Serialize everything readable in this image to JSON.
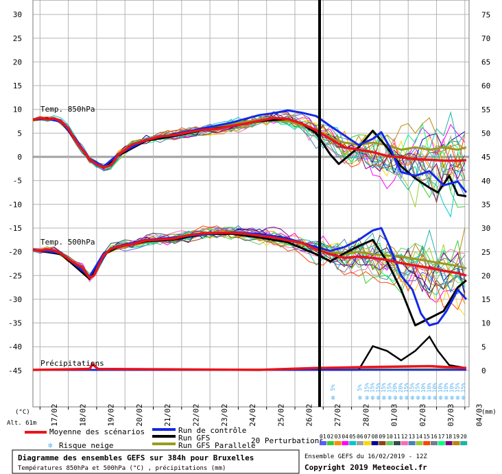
{
  "chart_data": {
    "type": "line",
    "title": "Diagramme des ensembles GEFS sur 384h pour Bruxelles",
    "subtitle": "Températures 850hPa et 500hPa (°C) , précipitations (mm)",
    "run_info": "Ensemble GEFS du 16/02/2019 - 12Z",
    "copyright": "Copyright 2019 Meteociel.fr",
    "y_left_label": "(°C)",
    "y_right_label": "(mm)",
    "altitude": "Alt. 61m",
    "y_left_ticks": [
      30,
      25,
      20,
      15,
      10,
      5,
      0,
      -5,
      -10,
      -15,
      -20,
      -25,
      -30,
      -35,
      -40,
      -45
    ],
    "y_left_tick_labels": [
      "30",
      "25",
      "20",
      "15",
      "10",
      "5",
      "0",
      "-5",
      "-10",
      "-15",
      "-20",
      "-25",
      "-30",
      "-35",
      "-40",
      "-45"
    ],
    "y_right_ticks": [
      75,
      70,
      65,
      60,
      55,
      50,
      45,
      40,
      35,
      30,
      25,
      20,
      15,
      10,
      5,
      0
    ],
    "y_right_tick_labels": [
      "75",
      "70",
      "65",
      "60",
      "55",
      "50",
      "45",
      "40",
      "35",
      "30",
      "25",
      "20",
      "15",
      "10",
      "5",
      "0"
    ],
    "ylim": [
      -50,
      32
    ],
    "x_dates": [
      "17/02",
      "18/02",
      "19/02",
      "20/02",
      "21/02",
      "22/02",
      "23/02",
      "24/02",
      "25/02",
      "26/02",
      "27/02",
      "28/02",
      "01/03",
      "02/03",
      "03/03",
      "04/03"
    ],
    "grid": true,
    "panel_labels": {
      "t850": "Temp. 850hPa",
      "t500": "Temp. 500hPa",
      "precip": "Précipitations"
    },
    "legend": {
      "mean": "Moyenne des scénarios",
      "control": "Run de contrôle",
      "gfs": "Run GFS",
      "parallel": "Run GFS Parallele",
      "perturbations": "20 Perturbations",
      "snow": "Risque neige",
      "member_numbers": [
        "01",
        "02",
        "03",
        "04",
        "05",
        "06",
        "07",
        "08",
        "09",
        "10",
        "11",
        "12",
        "13",
        "14",
        "15",
        "16",
        "17",
        "18",
        "19",
        "20"
      ]
    },
    "colors": {
      "mean": "#e8141e",
      "control": "#1428e6",
      "gfs": "#000000",
      "parallel": "#9a9a1e",
      "grid": "#b4b4b4",
      "zero_line": "#a0a0a0",
      "divider": "#000000",
      "snow": "#5ab4f0"
    },
    "member_colors": [
      "#5a5aff",
      "#32cd32",
      "#ff8c00",
      "#ff00ff",
      "#00c8c8",
      "#a0a0a0",
      "#ffd700",
      "#0000a0",
      "#8b4513",
      "#66cc66",
      "#2f4f4f",
      "#ff69b4",
      "#4682b4",
      "#9acd32",
      "#ff4500",
      "#708090",
      "#00ff7f",
      "#800080",
      "#b8860b",
      "#20b2aa"
    ],
    "series": [
      {
        "name": "Moyenne des scénarios",
        "t850": [
          [
            0,
            7.8
          ],
          [
            0.25,
            8.2
          ],
          [
            0.5,
            7.9
          ],
          [
            0.75,
            8.1
          ],
          [
            1,
            7.5
          ],
          [
            1.25,
            6.0
          ],
          [
            1.5,
            3.5
          ],
          [
            1.75,
            1.5
          ],
          [
            2,
            -0.5
          ],
          [
            2.25,
            -1.6
          ],
          [
            2.5,
            -2.2
          ],
          [
            2.75,
            -1.8
          ],
          [
            3,
            0.3
          ],
          [
            3.5,
            2.6
          ],
          [
            4,
            3.5
          ],
          [
            4.5,
            4.3
          ],
          [
            5,
            4.6
          ],
          [
            5.5,
            5.2
          ],
          [
            6,
            5.7
          ],
          [
            6.5,
            5.9
          ],
          [
            7,
            6.5
          ],
          [
            7.5,
            7.0
          ],
          [
            8,
            7.6
          ],
          [
            8.5,
            8.2
          ],
          [
            9,
            8.0
          ],
          [
            9.5,
            7.0
          ],
          [
            10,
            5.6
          ],
          [
            10.5,
            3.8
          ],
          [
            11,
            2.0
          ],
          [
            11.5,
            1.5
          ],
          [
            12,
            1.0
          ],
          [
            12.5,
            0.2
          ],
          [
            13,
            -0.1
          ],
          [
            13.5,
            -0.5
          ],
          [
            14,
            -0.6
          ],
          [
            14.5,
            -0.8
          ],
          [
            15,
            -0.8
          ],
          [
            15.3,
            -0.7
          ]
        ],
        "t500": [
          [
            0,
            -19.6
          ],
          [
            0.25,
            -19.8
          ],
          [
            0.5,
            -19.5
          ],
          [
            0.75,
            -19.7
          ],
          [
            1,
            -20.4
          ],
          [
            1.25,
            -21.5
          ],
          [
            1.5,
            -22.5
          ],
          [
            1.75,
            -23.3
          ],
          [
            2,
            -25.5
          ],
          [
            2.15,
            -25.0
          ],
          [
            2.5,
            -20.7
          ],
          [
            2.75,
            -19.4
          ],
          [
            3,
            -18.9
          ],
          [
            3.5,
            -18.4
          ],
          [
            4,
            -17.6
          ],
          [
            4.5,
            -17.4
          ],
          [
            5,
            -17.2
          ],
          [
            5.5,
            -16.5
          ],
          [
            6,
            -16.1
          ],
          [
            6.5,
            -16.0
          ],
          [
            7,
            -16.0
          ],
          [
            7.5,
            -16.2
          ],
          [
            8,
            -16.6
          ],
          [
            8.5,
            -17.0
          ],
          [
            9,
            -17.6
          ],
          [
            9.5,
            -18.1
          ],
          [
            10,
            -19.5
          ],
          [
            10.5,
            -20.5
          ],
          [
            11,
            -21.3
          ],
          [
            11.5,
            -21.0
          ],
          [
            12,
            -21.3
          ],
          [
            12.5,
            -21.7
          ],
          [
            13,
            -22.4
          ],
          [
            13.5,
            -22.9
          ],
          [
            14,
            -23.4
          ],
          [
            14.5,
            -24.0
          ],
          [
            15,
            -24.5
          ],
          [
            15.3,
            -25.0
          ]
        ],
        "precip": [
          [
            0,
            0
          ],
          [
            2,
            0.1
          ],
          [
            2.1,
            0.6
          ],
          [
            2.3,
            0.1
          ],
          [
            8,
            0
          ],
          [
            10,
            0.2
          ],
          [
            12,
            0.3
          ],
          [
            14,
            0.4
          ],
          [
            15.3,
            0.2
          ]
        ]
      },
      {
        "name": "Run de contrôle",
        "t850": [
          [
            0,
            7.9
          ],
          [
            0.5,
            8.0
          ],
          [
            1,
            7.4
          ],
          [
            1.5,
            3.8
          ],
          [
            2,
            -0.4
          ],
          [
            2.5,
            -2.0
          ],
          [
            3,
            0.5
          ],
          [
            4,
            3.6
          ],
          [
            5,
            4.8
          ],
          [
            6,
            6.0
          ],
          [
            7,
            7.2
          ],
          [
            8,
            8.8
          ],
          [
            8.5,
            9.2
          ],
          [
            9,
            9.8
          ],
          [
            9.5,
            9.3
          ],
          [
            10,
            8.6
          ],
          [
            10.5,
            6.5
          ],
          [
            11,
            4.5
          ],
          [
            11.5,
            2.5
          ],
          [
            12,
            3.8
          ],
          [
            12.3,
            5.2
          ],
          [
            12.6,
            2.0
          ],
          [
            13,
            -3.2
          ],
          [
            13.5,
            -4.0
          ],
          [
            14,
            -3.0
          ],
          [
            14.5,
            -6.0
          ],
          [
            15,
            -5.2
          ],
          [
            15.3,
            -7.5
          ]
        ],
        "t500": [
          [
            0,
            -19.5
          ],
          [
            1,
            -20.3
          ],
          [
            2,
            -25.2
          ],
          [
            2.5,
            -20.3
          ],
          [
            3,
            -18.8
          ],
          [
            4,
            -17.5
          ],
          [
            5,
            -17.0
          ],
          [
            6,
            -16.3
          ],
          [
            7,
            -15.9
          ],
          [
            8,
            -16.2
          ],
          [
            9,
            -17.2
          ],
          [
            10,
            -19.0
          ],
          [
            10.5,
            -19.8
          ],
          [
            11,
            -19.0
          ],
          [
            11.5,
            -17.5
          ],
          [
            12,
            -15.5
          ],
          [
            12.3,
            -15.0
          ],
          [
            12.6,
            -19.0
          ],
          [
            13,
            -25.0
          ],
          [
            13.4,
            -28.0
          ],
          [
            13.7,
            -33.0
          ],
          [
            14,
            -35.5
          ],
          [
            14.3,
            -35.0
          ],
          [
            14.6,
            -32.5
          ],
          [
            15,
            -28.0
          ],
          [
            15.3,
            -30.0
          ]
        ],
        "precip": [
          [
            0,
            0
          ],
          [
            15.3,
            0
          ]
        ]
      },
      {
        "name": "Run GFS",
        "t850": [
          [
            0,
            7.8
          ],
          [
            0.5,
            8.1
          ],
          [
            1,
            7.4
          ],
          [
            1.5,
            3.6
          ],
          [
            2,
            -0.6
          ],
          [
            2.5,
            -2.3
          ],
          [
            3,
            0.2
          ],
          [
            4,
            3.4
          ],
          [
            5,
            4.4
          ],
          [
            6,
            5.6
          ],
          [
            7,
            6.5
          ],
          [
            8,
            7.5
          ],
          [
            9,
            8.0
          ],
          [
            9.5,
            7.0
          ],
          [
            10,
            5.0
          ],
          [
            10.5,
            0.5
          ],
          [
            10.8,
            -1.5
          ],
          [
            11,
            -0.5
          ],
          [
            11.5,
            2.0
          ],
          [
            12,
            5.5
          ],
          [
            12.5,
            2.0
          ],
          [
            13,
            -2.0
          ],
          [
            13.5,
            -4.5
          ],
          [
            14,
            -6.5
          ],
          [
            14.3,
            -7.5
          ],
          [
            14.7,
            -4.0
          ],
          [
            15,
            -8.0
          ],
          [
            15.3,
            -8.3
          ]
        ],
        "t500": [
          [
            0,
            -19.6
          ],
          [
            1,
            -20.5
          ],
          [
            2,
            -25.7
          ],
          [
            2.5,
            -20.5
          ],
          [
            3,
            -19.0
          ],
          [
            4,
            -17.8
          ],
          [
            5,
            -17.4
          ],
          [
            6,
            -16.3
          ],
          [
            7,
            -16.2
          ],
          [
            8,
            -17.0
          ],
          [
            9,
            -18.0
          ],
          [
            10,
            -20.5
          ],
          [
            10.5,
            -22.0
          ],
          [
            11,
            -20.3
          ],
          [
            11.5,
            -18.8
          ],
          [
            12,
            -17.5
          ],
          [
            12.5,
            -22.0
          ],
          [
            13,
            -28.0
          ],
          [
            13.5,
            -35.5
          ],
          [
            14,
            -34.0
          ],
          [
            14.5,
            -32.5
          ],
          [
            15,
            -27.5
          ],
          [
            15.3,
            -26.0
          ]
        ],
        "precip": [
          [
            0,
            0
          ],
          [
            11.5,
            0
          ],
          [
            12,
            2.5
          ],
          [
            12.5,
            2.0
          ],
          [
            13,
            1.0
          ],
          [
            13.5,
            2.0
          ],
          [
            14,
            3.5
          ],
          [
            14.3,
            2.0
          ],
          [
            14.7,
            0.5
          ],
          [
            15.3,
            0.2
          ]
        ]
      },
      {
        "name": "Run GFS Parallele",
        "t850": [
          [
            0,
            7.7
          ],
          [
            0.5,
            8.0
          ],
          [
            1,
            7.5
          ],
          [
            1.5,
            3.7
          ],
          [
            2,
            -0.3
          ],
          [
            2.5,
            -2.1
          ],
          [
            3,
            0.4
          ],
          [
            4,
            3.7
          ],
          [
            5,
            4.5
          ],
          [
            6,
            5.8
          ],
          [
            7,
            7.0
          ],
          [
            8,
            7.8
          ],
          [
            9,
            7.5
          ],
          [
            10,
            5.8
          ],
          [
            10.5,
            4.0
          ],
          [
            11,
            3.0
          ],
          [
            11.5,
            2.5
          ],
          [
            12,
            3.0
          ],
          [
            12.5,
            2.5
          ],
          [
            13,
            1.5
          ],
          [
            13.5,
            2.0
          ],
          [
            14,
            1.5
          ],
          [
            14.5,
            2.0
          ],
          [
            15,
            1.5
          ],
          [
            15.3,
            2.0
          ]
        ],
        "t500": [
          [
            0,
            -19.7
          ],
          [
            1,
            -20.4
          ],
          [
            2,
            -25.3
          ],
          [
            2.5,
            -20.5
          ],
          [
            3,
            -19.2
          ],
          [
            4,
            -17.6
          ],
          [
            5,
            -17.5
          ],
          [
            6,
            -16.0
          ],
          [
            7,
            -15.8
          ],
          [
            8,
            -16.3
          ],
          [
            9,
            -17.4
          ],
          [
            10,
            -19.2
          ],
          [
            10.5,
            -20.0
          ],
          [
            11,
            -20.5
          ],
          [
            11.5,
            -20.0
          ],
          [
            12,
            -20.5
          ],
          [
            12.5,
            -20.8
          ],
          [
            13,
            -21.0
          ],
          [
            13.5,
            -21.5
          ],
          [
            14,
            -22.0
          ],
          [
            14.5,
            -22.5
          ],
          [
            15,
            -23.0
          ],
          [
            15.3,
            -23.5
          ]
        ],
        "precip": [
          [
            0,
            0
          ],
          [
            15.3,
            0.1
          ]
        ]
      }
    ],
    "snow_markers": [
      {
        "x": 10.65,
        "pct": "5%"
      },
      {
        "x": 11.6,
        "pct": "5%"
      },
      {
        "x": 11.85,
        "pct": "15%"
      },
      {
        "x": 12.05,
        "pct": "15%"
      },
      {
        "x": 12.25,
        "pct": "15%"
      },
      {
        "x": 12.45,
        "pct": "15%"
      },
      {
        "x": 12.65,
        "pct": "15%"
      },
      {
        "x": 12.85,
        "pct": "20%"
      },
      {
        "x": 13.05,
        "pct": "20%"
      },
      {
        "x": 13.25,
        "pct": "15%"
      },
      {
        "x": 13.45,
        "pct": "15%"
      },
      {
        "x": 13.65,
        "pct": "15%"
      },
      {
        "x": 13.85,
        "pct": "10%"
      },
      {
        "x": 14.05,
        "pct": "10%"
      },
      {
        "x": 14.25,
        "pct": "10%"
      },
      {
        "x": 14.45,
        "pct": "10%"
      },
      {
        "x": 14.65,
        "pct": "10%"
      },
      {
        "x": 14.85,
        "pct": "10%"
      },
      {
        "x": 15.05,
        "pct": "15%"
      },
      {
        "x": 15.25,
        "pct": "15%"
      }
    ]
  }
}
